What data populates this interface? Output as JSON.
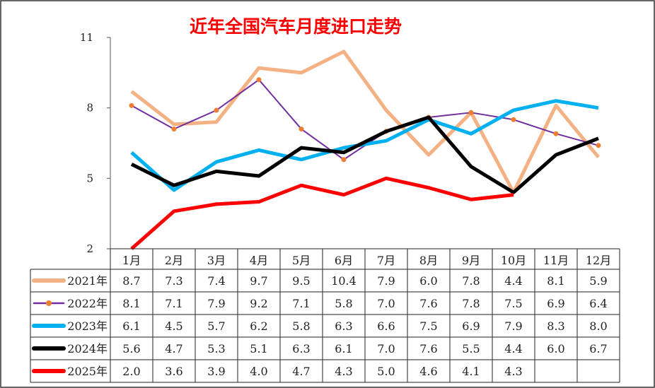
{
  "chart_data": {
    "type": "line",
    "title": "近年全国汽车月度进口走势",
    "categories": [
      "1月",
      "2月",
      "3月",
      "4月",
      "5月",
      "6月",
      "7月",
      "8月",
      "9月",
      "10月",
      "11月",
      "12月"
    ],
    "ylim": [
      2,
      11
    ],
    "yticks": [
      2,
      5,
      8,
      11
    ],
    "grid": false,
    "legend": "table-below",
    "series": [
      {
        "name": "2021年",
        "color": "#f4b183",
        "marker": false,
        "values": [
          8.7,
          7.3,
          7.4,
          9.7,
          9.5,
          10.4,
          7.9,
          6.0,
          7.8,
          4.4,
          8.1,
          5.9
        ]
      },
      {
        "name": "2022年",
        "color": "#7030a0",
        "marker": true,
        "marker_color": "#ed7d31",
        "values": [
          8.1,
          7.1,
          7.9,
          9.2,
          7.1,
          5.8,
          7.0,
          7.6,
          7.8,
          7.5,
          6.9,
          6.4
        ]
      },
      {
        "name": "2023年",
        "color": "#00b0f0",
        "marker": false,
        "values": [
          6.1,
          4.5,
          5.7,
          6.2,
          5.8,
          6.3,
          6.6,
          7.5,
          6.9,
          7.9,
          8.3,
          8.0
        ]
      },
      {
        "name": "2024年",
        "color": "#000000",
        "marker": false,
        "values": [
          5.6,
          4.7,
          5.3,
          5.1,
          6.3,
          6.1,
          7.0,
          7.6,
          5.5,
          4.4,
          6.0,
          6.7
        ]
      },
      {
        "name": "2025年",
        "color": "#ff0000",
        "marker": false,
        "values": [
          2.0,
          3.6,
          3.9,
          4.0,
          4.7,
          4.3,
          5.0,
          4.6,
          4.1,
          4.3,
          null,
          null
        ]
      }
    ]
  }
}
